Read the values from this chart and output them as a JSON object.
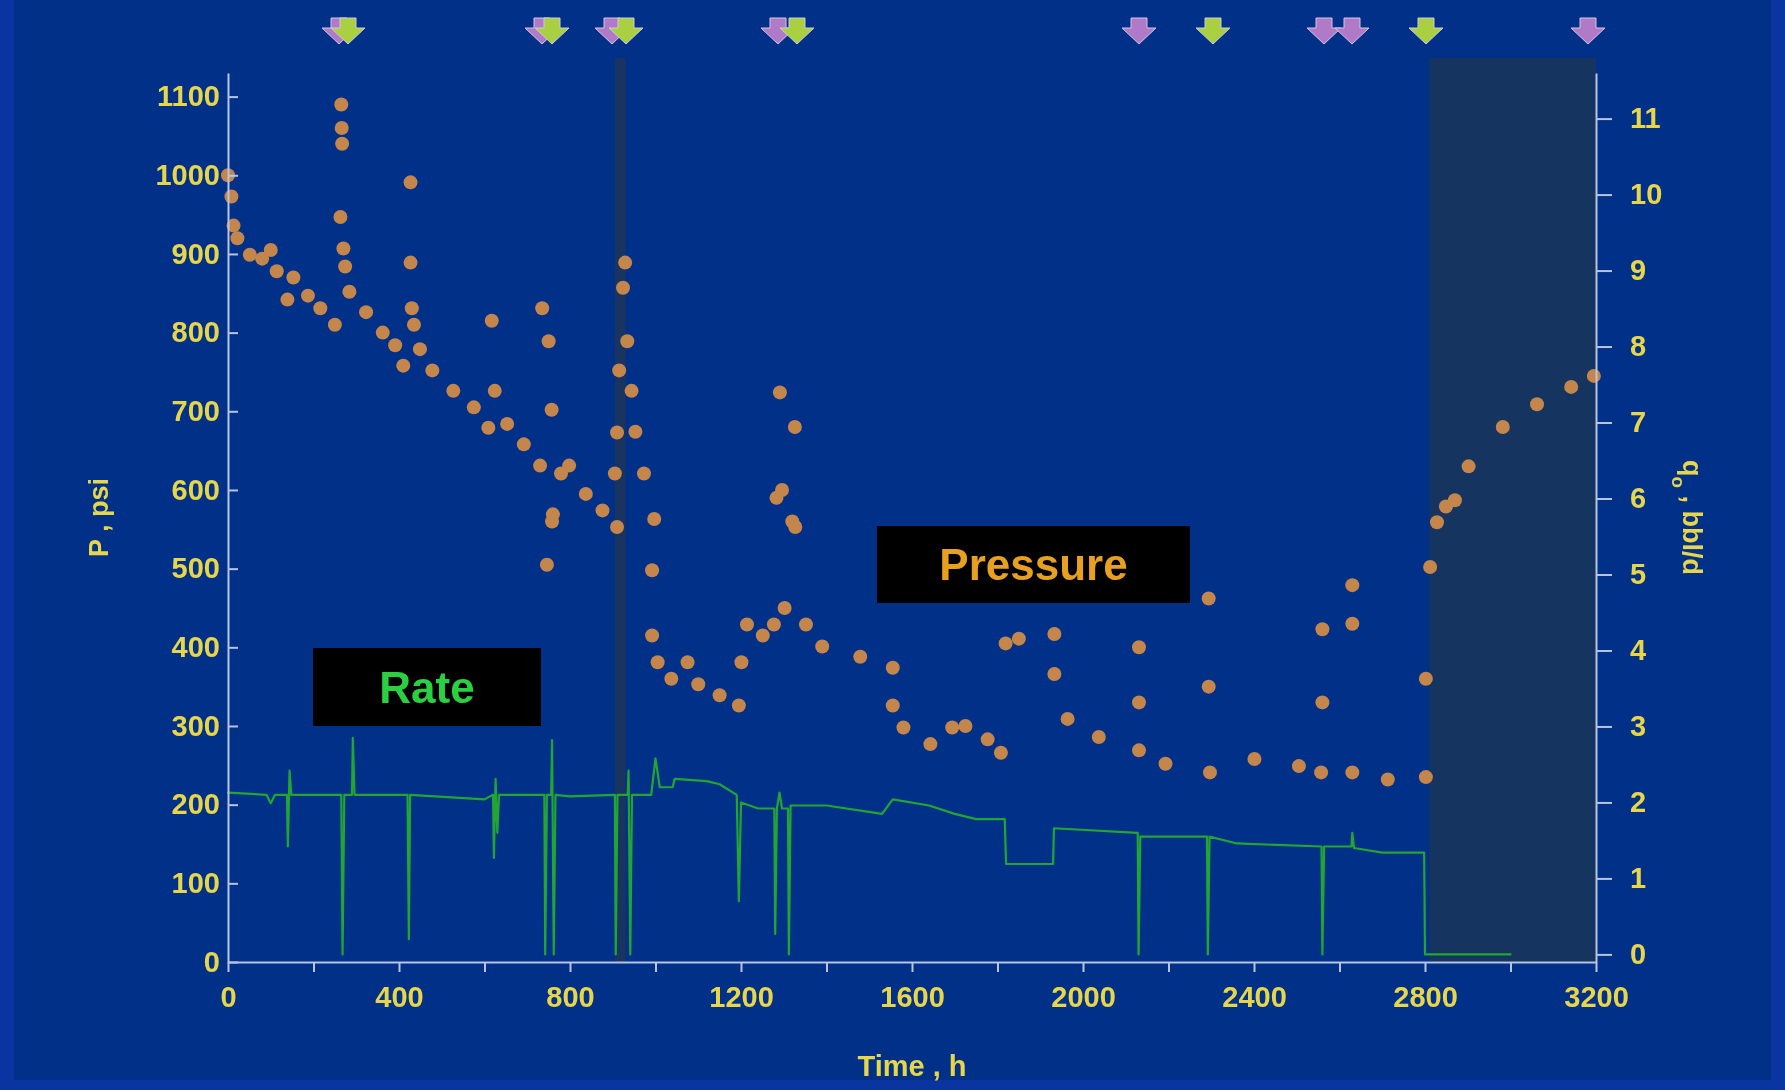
{
  "chart_data": {
    "type": "scatter",
    "xlabel": "Time , h",
    "ylabel": "P , psi",
    "y2label": "q$_{o}$ , bbl/d",
    "xlim": [
      0,
      3200
    ],
    "xticks": [
      0,
      {
        "value": 200,
        "label": null
      },
      400,
      {
        "value": 600,
        "label": null
      },
      800,
      {
        "value": 1000,
        "label": null
      },
      1200,
      {
        "value": 1400,
        "label": null
      },
      1600,
      {
        "value": 1800,
        "label": null
      },
      2000,
      {
        "value": 2200,
        "label": null
      },
      2400,
      {
        "value": 2600,
        "label": null
      },
      2800,
      {
        "value": 3000,
        "label": null
      },
      3200
    ],
    "ylim": [
      0,
      1130
    ],
    "yticks": [
      0,
      100,
      200,
      300,
      400,
      500,
      600,
      700,
      800,
      900,
      1000,
      1100
    ],
    "y2lim": [
      -0.1,
      11.6
    ],
    "y2ticks": [
      0,
      1,
      2,
      3,
      4,
      5,
      6,
      7,
      8,
      9,
      10,
      11
    ],
    "grid": false,
    "bands": [
      {
        "axis": "x",
        "from": 905,
        "to": 930,
        "color": "#1a3462"
      },
      {
        "axis": "x",
        "from": 2810,
        "to": 3200,
        "color": "#15345f"
      }
    ],
    "series": [
      {
        "name": "Pressure",
        "marker": "circle",
        "color": "#c4864a",
        "x": [
          0,
          8,
          13,
          22,
          51,
          80,
          100,
          114,
          139,
          153,
          187,
          216,
          250,
          263,
          265,
          266,
          267,
          270,
          274,
          284,
          323,
          362,
          391,
          410,
          427,
          427,
          430,
          435,
          449,
          478,
          527,
          575,
          609,
          617,
          624,
          653,
          692,
          730,
          735,
          746,
          750,
          757,
          758,
          760,
          779,
          798,
          837,
          876,
          905,
          910,
          910,
          915,
          924,
          929,
          934,
          944,
          953,
          973,
          992,
          997,
          992,
          1005,
          1037,
          1075,
          1100,
          1150,
          1195,
          1201,
          1214,
          1251,
          1277,
          1283,
          1291,
          1296,
          1302,
          1320,
          1326,
          1327,
          1352,
          1390,
          1479,
          1555,
          1555,
          1580,
          1643,
          1694,
          1725,
          1777,
          1808,
          1819,
          1850,
          1933,
          1933,
          1964,
          2037,
          2131,
          2131,
          2131,
          2193,
          2294,
          2294,
          2297,
          2401,
          2505,
          2557,
          2560,
          2560,
          2630,
          2630,
          2630,
          2713,
          2802,
          2802,
          2812,
          2828,
          2849,
          2870,
          2902,
          2982,
          3062,
          3142,
          3195
        ],
        "values": [
          1000,
          973,
          936,
          920,
          899,
          894,
          905,
          878,
          842,
          870,
          847,
          831,
          810,
          947,
          1090,
          1060,
          1040,
          907,
          884,
          852,
          826,
          800,
          784,
          758,
          991,
          889,
          831,
          810,
          779,
          752,
          726,
          705,
          679,
          815,
          726,
          684,
          658,
          631,
          831,
          505,
          789,
          702,
          560,
          569,
          621,
          631,
          595,
          574,
          621,
          553,
          673,
          752,
          857,
          889,
          789,
          726,
          674,
          621,
          498,
          563,
          415,
          381,
          360,
          381,
          353,
          339,
          326,
          381,
          429,
          415,
          429,
          590,
          724,
          600,
          450,
          560,
          680,
          553,
          429,
          401,
          388,
          374,
          326,
          298,
          277,
          298,
          300,
          283,
          266,
          405,
          411,
          417,
          366,
          309,
          286,
          269,
          400,
          330,
          252,
          462,
          350,
          241,
          258,
          249,
          241,
          423,
          330,
          479,
          430,
          241,
          232,
          235,
          360,
          502,
          559,
          579,
          587,
          630,
          680,
          709,
          731,
          745
        ]
      },
      {
        "name": "Rate",
        "type": "line",
        "axis": "y2",
        "color": "#22a532",
        "x": [
          0,
          90,
          100,
          110,
          138,
          140,
          144,
          148,
          265,
          268,
          272,
          290,
          292,
          296,
          420,
          423,
          426,
          600,
          620,
          622,
          626,
          630,
          634,
          740,
          742,
          746,
          756,
          758,
          762,
          766,
          800,
          905,
          907,
          911,
          935,
          937,
          941,
          945,
          990,
          1000,
          1010,
          1040,
          1045,
          1120,
          1150,
          1190,
          1195,
          1200,
          1240,
          1278,
          1280,
          1284,
          1290,
          1296,
          1310,
          1312,
          1316,
          1400,
          1530,
          1555,
          1640,
          1700,
          1750,
          1817,
          1820,
          1930,
          1932,
          2128,
          2130,
          2134,
          2290,
          2292,
          2296,
          2360,
          2558,
          2560,
          2564,
          2628,
          2630,
          2634,
          2700,
          2798,
          2800,
          3000
        ],
        "values": [
          2.13,
          2.1,
          1.99,
          2.1,
          2.1,
          1.42,
          2.42,
          2.1,
          2.1,
          0,
          2.1,
          2.1,
          2.85,
          2.1,
          2.1,
          0.2,
          2.1,
          2.04,
          2.1,
          1.27,
          2.31,
          1.6,
          2.1,
          2.1,
          0,
          2.1,
          2.1,
          2.82,
          0,
          2.1,
          2.08,
          2.1,
          0,
          2.1,
          2.1,
          2.42,
          0,
          2.1,
          2.1,
          2.58,
          2.2,
          2.2,
          2.31,
          2.28,
          2.24,
          2.1,
          0.7,
          2.0,
          1.92,
          1.92,
          0.27,
          1.92,
          2.13,
          1.92,
          1.92,
          0,
          1.96,
          1.96,
          1.85,
          2.04,
          1.96,
          1.85,
          1.78,
          1.78,
          1.19,
          1.19,
          1.66,
          1.6,
          0,
          1.55,
          1.55,
          0,
          1.55,
          1.46,
          1.42,
          0,
          1.42,
          1.42,
          1.6,
          1.4,
          1.34,
          1.34,
          0,
          0
        ]
      }
    ]
  }
}
